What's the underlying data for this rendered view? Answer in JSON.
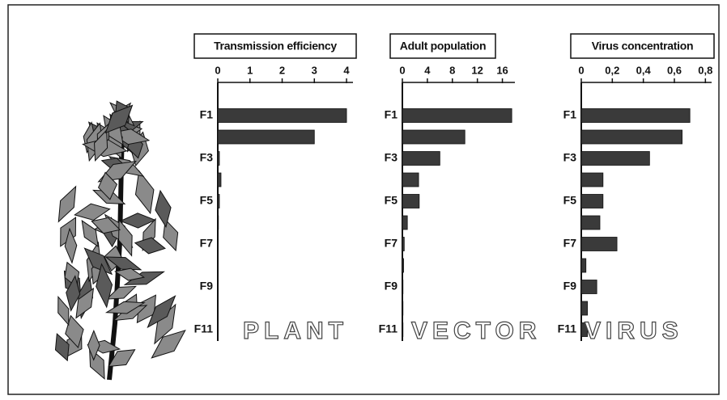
{
  "chart_data": [
    {
      "type": "bar",
      "orientation": "horizontal",
      "title": "Transmission efficiency",
      "categories": [
        "F1",
        null,
        "F3",
        null,
        "F5",
        null,
        "F7",
        null,
        "F9",
        null,
        "F11"
      ],
      "values": [
        4.0,
        3.0,
        0.05,
        0.1,
        0.05,
        0.02,
        0.0,
        0.0,
        0.0,
        0.0,
        0.0
      ],
      "xlim": [
        0,
        4.2
      ],
      "xticks": [
        0,
        1,
        2,
        3,
        4
      ],
      "color": "#3a3a3a",
      "annotation": "PLANT"
    },
    {
      "type": "bar",
      "orientation": "horizontal",
      "title": "Adult population",
      "categories": [
        "F1",
        null,
        "F3",
        null,
        "F5",
        null,
        "F7",
        null,
        "F9",
        null,
        "F11"
      ],
      "values": [
        17.5,
        10,
        6,
        2.6,
        2.7,
        0.8,
        0.3,
        0.2,
        0.1,
        0.1,
        0.1
      ],
      "xlim": [
        0,
        18
      ],
      "xticks": [
        0,
        4,
        8,
        12,
        16
      ],
      "color": "#3a3a3a",
      "annotation": "VECTOR"
    },
    {
      "type": "bar",
      "orientation": "horizontal",
      "title": "Virus concentration",
      "categories": [
        "F1",
        null,
        "F3",
        null,
        "F5",
        null,
        "F7",
        null,
        "F9",
        null,
        "F11"
      ],
      "values": [
        0.7,
        0.65,
        0.44,
        0.14,
        0.14,
        0.12,
        0.23,
        0.03,
        0.1,
        0.04,
        0.04
      ],
      "xlim": [
        0,
        0.84
      ],
      "xticks": [
        0,
        {
          "value": 0.2,
          "label": "0,2"
        },
        {
          "value": 0.4,
          "label": "0,4"
        },
        {
          "value": 0.6,
          "label": "0,6"
        },
        {
          "value": 0.8,
          "label": "0,8"
        }
      ],
      "color": "#3a3a3a",
      "annotation": "VIRUS"
    }
  ]
}
